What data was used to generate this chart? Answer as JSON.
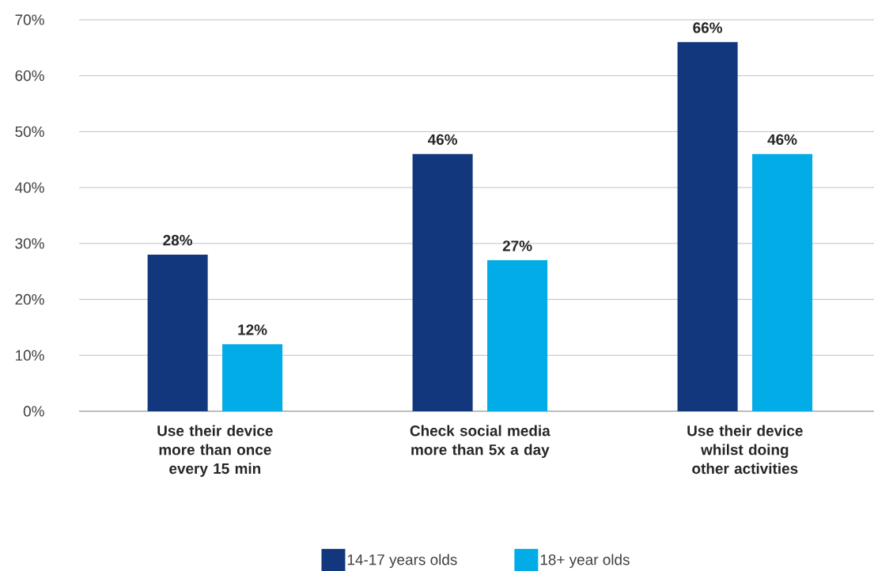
{
  "chart_data": {
    "type": "bar",
    "categories": [
      "Use their device more than once every 15 min",
      "Check social media more than 5x a day",
      "Use their device whilst doing other activities"
    ],
    "series": [
      {
        "name": "14-17 years olds",
        "color": "#12377c",
        "values": [
          28,
          46,
          66
        ],
        "value_labels": [
          "28%",
          "46%",
          "66%"
        ]
      },
      {
        "name": "18+ year olds",
        "color": "#02ace6",
        "values": [
          12,
          27,
          46
        ],
        "value_labels": [
          "12%",
          "27%",
          "46%"
        ]
      }
    ],
    "ylim": [
      0,
      70
    ],
    "yticks": [
      {
        "value": 0,
        "label": "0%"
      },
      {
        "value": 10,
        "label": "10%"
      },
      {
        "value": 20,
        "label": "20%"
      },
      {
        "value": 30,
        "label": "30%"
      },
      {
        "value": 40,
        "label": "40%"
      },
      {
        "value": 50,
        "label": "50%"
      },
      {
        "value": 60,
        "label": "60%"
      },
      {
        "value": 70,
        "label": "70%"
      }
    ],
    "grid": "y",
    "legend": "bottom"
  }
}
